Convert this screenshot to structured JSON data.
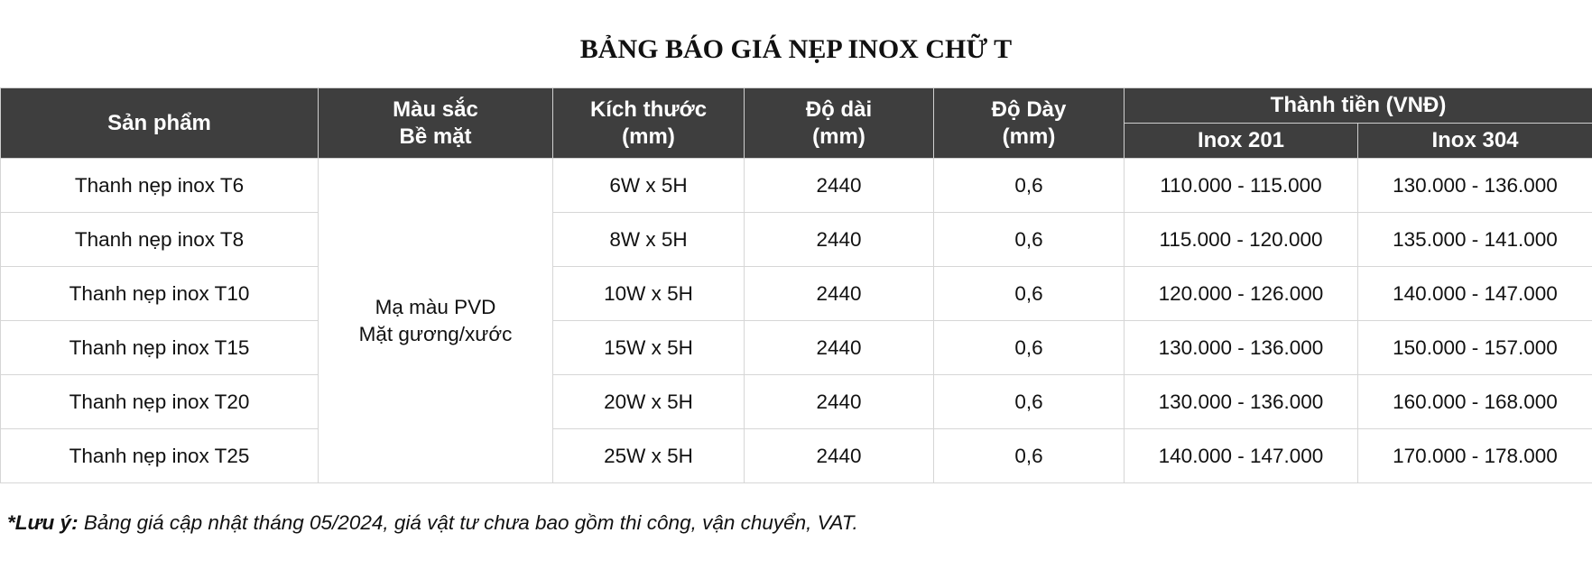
{
  "title": "BẢNG BÁO GIÁ NẸP INOX CHỮ T",
  "headers": {
    "product": "Sản phẩm",
    "color_line1": "Màu sắc",
    "color_line2": "Bề mặt",
    "size_line1": "Kích thước",
    "size_line2": "(mm)",
    "length_line1": "Độ dài",
    "length_line2": "(mm)",
    "thickness_line1": "Độ Dày",
    "thickness_line2": "(mm)",
    "price_group": "Thành tiền (VNĐ)",
    "inox201": "Inox 201",
    "inox304": "Inox 304"
  },
  "color_finish_line1": "Mạ màu PVD",
  "color_finish_line2": "Mặt gương/xước",
  "rows": [
    {
      "product": "Thanh nẹp inox T6",
      "size": "6W x 5H",
      "length": "2440",
      "thickness": "0,6",
      "inox201": "110.000 - 115.000",
      "inox304": "130.000 - 136.000"
    },
    {
      "product": "Thanh nẹp inox T8",
      "size": "8W x 5H",
      "length": "2440",
      "thickness": "0,6",
      "inox201": "115.000 - 120.000",
      "inox304": "135.000 - 141.000"
    },
    {
      "product": "Thanh nẹp inox T10",
      "size": "10W x 5H",
      "length": "2440",
      "thickness": "0,6",
      "inox201": "120.000 - 126.000",
      "inox304": "140.000 - 147.000"
    },
    {
      "product": "Thanh nẹp inox T15",
      "size": "15W x 5H",
      "length": "2440",
      "thickness": "0,6",
      "inox201": "130.000 - 136.000",
      "inox304": "150.000 - 157.000"
    },
    {
      "product": "Thanh nẹp inox T20",
      "size": "20W x 5H",
      "length": "2440",
      "thickness": "0,6",
      "inox201": "130.000 - 136.000",
      "inox304": "160.000 - 168.000"
    },
    {
      "product": "Thanh nẹp inox T25",
      "size": "25W x 5H",
      "length": "2440",
      "thickness": "0,6",
      "inox201": "140.000 - 147.000",
      "inox304": "170.000 - 178.000"
    }
  ],
  "note": {
    "label": "*Lưu ý:",
    "text": " Bảng giá cập nhật tháng 05/2024, giá vật tư chưa bao gồm thi công, vận chuyển, VAT."
  },
  "colors": {
    "header_bg": "#3e3e3e",
    "header_text": "#ffffff"
  }
}
